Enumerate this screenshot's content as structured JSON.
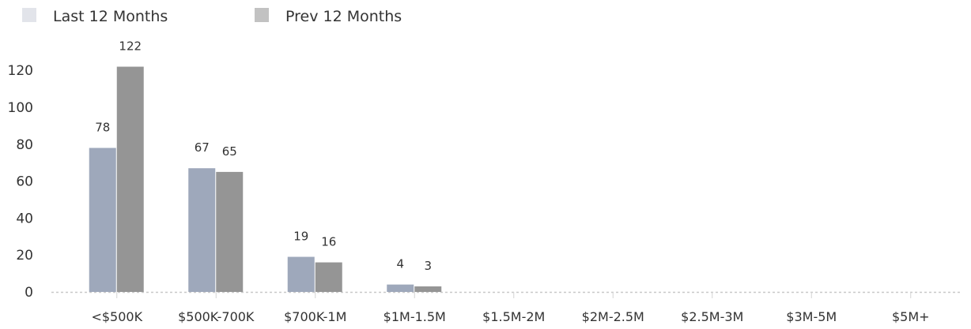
{
  "chart_data": {
    "type": "bar",
    "title": "",
    "xlabel": "",
    "ylabel": "",
    "ylim": [
      0,
      130
    ],
    "y_ticks": [
      "0",
      "20",
      "40",
      "60",
      "80",
      "100",
      "120"
    ],
    "y_tick_values": [
      0,
      20,
      40,
      60,
      80,
      100,
      120
    ],
    "grid": false,
    "legend_position": "top-left",
    "categories": [
      "<$500K",
      "$500K-700K",
      "$700K-1M",
      "$1M-1.5M",
      "$1.5M-2M",
      "$2M-2.5M",
      "$2.5M-3M",
      "$3M-5M",
      "$5M+"
    ],
    "series": [
      {
        "name": "Last 12 Months",
        "color": "#9ea8bb",
        "legend_color": "#e2e4ea",
        "values": [
          78,
          67,
          19,
          4,
          0,
          0,
          0,
          0,
          0
        ],
        "labels": [
          "78",
          "67",
          "19",
          "4",
          "",
          "",
          "",
          "",
          ""
        ]
      },
      {
        "name": "Prev 12 Months",
        "color": "#959595",
        "legend_color": "#c2c2c2",
        "values": [
          122,
          65,
          16,
          3,
          0,
          0,
          0,
          0,
          0
        ],
        "labels": [
          "122",
          "65",
          "16",
          "3",
          "",
          "",
          "",
          "",
          ""
        ]
      }
    ]
  }
}
